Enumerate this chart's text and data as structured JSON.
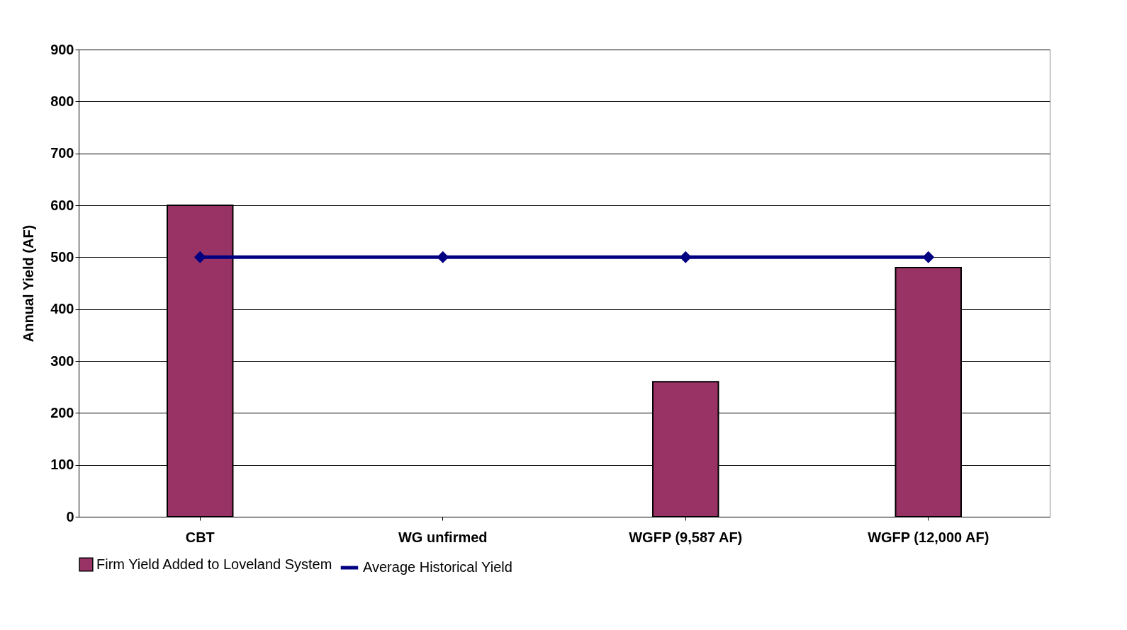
{
  "chart_data": {
    "type": "bar",
    "ylabel": "Annual Yield (AF)",
    "categories": [
      "CBT",
      "WG unfirmed",
      "WGFP (9,587 AF)",
      "WGFP (12,000 AF)"
    ],
    "series": [
      {
        "name": "Firm Yield Added to Loveland System",
        "color": "#993366",
        "values": [
          600,
          null,
          260,
          480
        ]
      },
      {
        "name": "Average Historical Yield",
        "type": "line",
        "color": "#000080",
        "values": [
          500,
          500,
          500,
          500
        ]
      }
    ],
    "ylim": [
      0,
      900
    ],
    "yticks": [
      0,
      100,
      200,
      300,
      400,
      500,
      600,
      700,
      800,
      900
    ],
    "grid": "y",
    "legend": "bottom",
    "marker": "diamond"
  }
}
